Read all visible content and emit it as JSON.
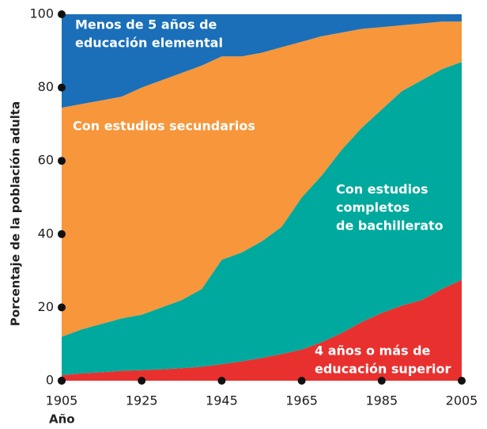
{
  "chart_data": {
    "type": "stacked_area",
    "y_label": "Porcentaje de la población adulta",
    "x_label": "Año",
    "x": [
      1905,
      1910,
      1915,
      1920,
      1925,
      1930,
      1935,
      1940,
      1945,
      1950,
      1955,
      1960,
      1965,
      1970,
      1975,
      1980,
      1985,
      1990,
      1995,
      2000,
      2005
    ],
    "xlim": [
      1905,
      2005
    ],
    "xticks": [
      1905,
      1925,
      1945,
      1965,
      1985,
      2005
    ],
    "ylim": [
      0,
      100
    ],
    "yticks": [
      0,
      20,
      40,
      60,
      80,
      100
    ],
    "series": [
      {
        "label_lines": [
          "4 años o más de",
          "educación superior"
        ],
        "color": "#e8312f",
        "values": [
          1.5,
          2,
          2.3,
          2.7,
          2.9,
          3.1,
          3.4,
          3.8,
          4.5,
          5.3,
          6.2,
          7.3,
          8.5,
          10.5,
          13,
          16,
          18.5,
          20.5,
          22,
          25,
          27.5
        ]
      },
      {
        "label_lines": [
          "Con estudios",
          "completos",
          "de bachillerato"
        ],
        "color": "#00a99d",
        "values": [
          10.5,
          12,
          13.2,
          14.3,
          15.1,
          16.9,
          18.6,
          21.2,
          28.5,
          29.7,
          31.8,
          34.7,
          41.5,
          45.5,
          50,
          53,
          55.5,
          58.5,
          60,
          60,
          59.5
        ]
      },
      {
        "label_lines": [
          "Con estudios secundarios"
        ],
        "color": "#f7963a",
        "values": [
          62.5,
          61.5,
          61,
          60.5,
          62,
          62,
          62,
          61,
          55.5,
          53.5,
          51.5,
          49,
          42.5,
          38,
          32,
          27,
          22.5,
          18,
          15.5,
          13,
          11
        ]
      },
      {
        "label_lines": [
          "Menos de 5 años de",
          "educación elemental"
        ],
        "color": "#1a6fb8",
        "values": [
          25.5,
          24.5,
          23.5,
          22.5,
          20,
          18,
          16,
          14,
          11.5,
          11.5,
          10.5,
          9,
          7.5,
          6,
          5,
          4,
          3.5,
          3,
          2.5,
          2,
          2
        ]
      }
    ]
  }
}
